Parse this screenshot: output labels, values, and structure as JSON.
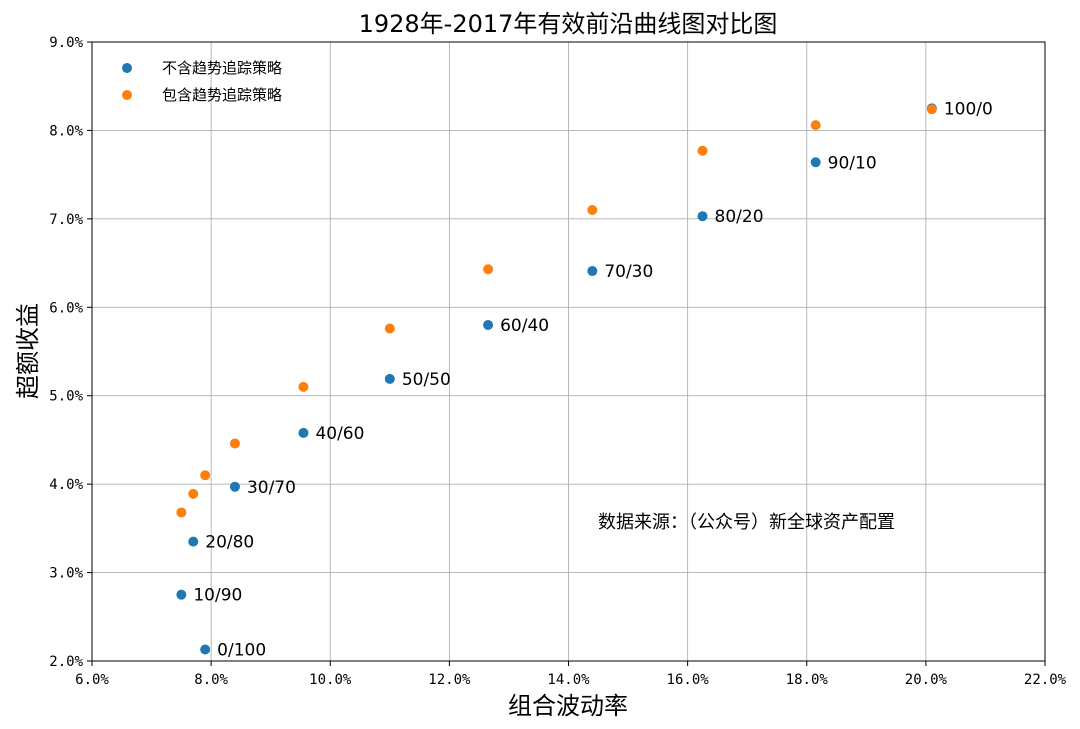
{
  "chart_data": {
    "type": "scatter",
    "title": "1928年-2017年有效前沿曲线图对比图",
    "xlabel": "组合波动率",
    "ylabel": "超额收益",
    "xlim": [
      6.0,
      22.0
    ],
    "ylim": [
      2.0,
      9.0
    ],
    "x_ticks": [
      6,
      8,
      10,
      12,
      14,
      16,
      18,
      20,
      22
    ],
    "y_ticks": [
      2,
      3,
      4,
      5,
      6,
      7,
      8,
      9
    ],
    "tick_suffix": "%",
    "grid": true,
    "legend_position": "top-left",
    "series": [
      {
        "name": "不含趋势追踪策略",
        "color": "#1f77b4",
        "x": [
          7.9,
          7.5,
          7.7,
          8.4,
          9.55,
          11.0,
          12.65,
          14.4,
          16.25,
          18.15,
          20.1
        ],
        "y": [
          2.13,
          2.75,
          3.35,
          3.97,
          4.58,
          5.19,
          5.8,
          6.41,
          7.03,
          7.64,
          8.25
        ],
        "labels": [
          "0/100",
          "10/90",
          "20/80",
          "30/70",
          "40/60",
          "50/50",
          "60/40",
          "70/30",
          "80/20",
          "90/10",
          "100/0"
        ]
      },
      {
        "name": "包含趋势追踪策略",
        "color": "#ff7f0e",
        "x": [
          7.5,
          7.7,
          7.9,
          8.4,
          9.55,
          11.0,
          12.65,
          14.4,
          16.25,
          18.15,
          20.1
        ],
        "y": [
          3.68,
          3.89,
          4.1,
          4.46,
          5.1,
          5.76,
          6.43,
          7.1,
          7.77,
          8.06,
          8.24
        ]
      }
    ],
    "annotation": "数据来源：（公众号）新全球资产配置"
  }
}
